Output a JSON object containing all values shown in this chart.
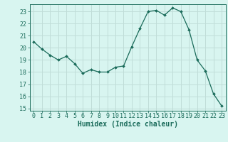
{
  "x": [
    0,
    1,
    2,
    3,
    4,
    5,
    6,
    7,
    8,
    9,
    10,
    11,
    12,
    13,
    14,
    15,
    16,
    17,
    18,
    19,
    20,
    21,
    22,
    23
  ],
  "y": [
    20.5,
    19.9,
    19.4,
    19.0,
    19.3,
    18.7,
    17.9,
    18.2,
    18.0,
    18.0,
    18.4,
    18.5,
    20.1,
    21.6,
    23.0,
    23.1,
    22.7,
    23.3,
    23.0,
    21.5,
    19.0,
    18.1,
    16.2,
    15.2
  ],
  "line_color": "#1a6b5a",
  "marker": "D",
  "marker_size": 2.0,
  "bg_color": "#d8f5f0",
  "grid_color": "#c0ddd8",
  "xlabel": "Humidex (Indice chaleur)",
  "ylim": [
    14.8,
    23.6
  ],
  "xlim": [
    -0.5,
    23.5
  ],
  "yticks": [
    15,
    16,
    17,
    18,
    19,
    20,
    21,
    22,
    23
  ],
  "xticks": [
    0,
    1,
    2,
    3,
    4,
    5,
    6,
    7,
    8,
    9,
    10,
    11,
    12,
    13,
    14,
    15,
    16,
    17,
    18,
    19,
    20,
    21,
    22,
    23
  ],
  "tick_color": "#1a6b5a",
  "font_color": "#1a6b5a",
  "xlabel_fontsize": 7.0,
  "tick_fontsize": 6.0
}
